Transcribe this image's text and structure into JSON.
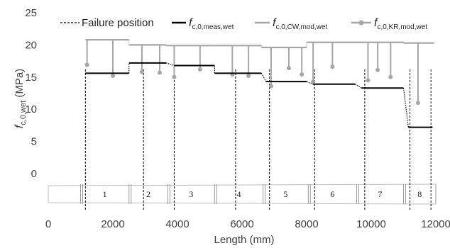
{
  "chart_data": {
    "type": "line",
    "xlabel": "Length (mm)",
    "ylabel": {
      "main": "f",
      "sub": "c,0,wet",
      "unit": " (MPa)"
    },
    "xlim": [
      0,
      12000
    ],
    "ylim": [
      0,
      25
    ],
    "x_ticks": [
      "0",
      "2000",
      "4000",
      "6000",
      "8000",
      "10000",
      "12000"
    ],
    "y_ticks": [
      "0",
      "5",
      "10",
      "15",
      "20",
      "25"
    ],
    "grid": false,
    "legend_position": "top",
    "legend": {
      "failure": "Failure position",
      "meas": {
        "main": "f",
        "sub": "c,0,meas,wet"
      },
      "cw": {
        "main": "f",
        "sub": "c,0,CW,mod,wet"
      },
      "kr": {
        "main": "f",
        "sub": "c,0,KR,mod,wet"
      }
    },
    "colors": {
      "meas": "#000000",
      "cw": "#a6a6a6",
      "kr": "#a6a6a6",
      "failure": "#000000"
    },
    "series": [
      {
        "name": "fc,0,meas,wet",
        "steps": [
          {
            "x0": 1150,
            "x1": 2500,
            "y": 15.6
          },
          {
            "x0": 2500,
            "x1": 3650,
            "y": 17.2
          },
          {
            "x0": 3900,
            "x1": 5150,
            "y": 16.8
          },
          {
            "x0": 5150,
            "x1": 6600,
            "y": 15.6
          },
          {
            "x0": 6750,
            "x1": 8000,
            "y": 14.3
          },
          {
            "x0": 8200,
            "x1": 9500,
            "y": 13.9
          },
          {
            "x0": 9700,
            "x1": 11000,
            "y": 13.3
          },
          {
            "x0": 11150,
            "x1": 11900,
            "y": 7.2
          }
        ]
      },
      {
        "name": "fc,0,CW,mod,wet",
        "steps": [
          {
            "x0": 1150,
            "x1": 2500,
            "y": 20.8
          },
          {
            "x0": 2500,
            "x1": 3650,
            "y": 20.0
          },
          {
            "x0": 3650,
            "x1": 5150,
            "y": 19.9
          },
          {
            "x0": 5150,
            "x1": 6600,
            "y": 19.9
          },
          {
            "x0": 6600,
            "x1": 8000,
            "y": 19.6
          },
          {
            "x0": 8000,
            "x1": 9600,
            "y": 20.4
          },
          {
            "x0": 9600,
            "x1": 11000,
            "y": 20.4
          },
          {
            "x0": 11000,
            "x1": 11950,
            "y": 20.3
          }
        ]
      },
      {
        "name": "fc,0,KR,mod,wet",
        "points": [
          {
            "x": 1200,
            "y": 16.9
          },
          {
            "x": 2000,
            "y": 15.2
          },
          {
            "x": 2900,
            "y": 15.8
          },
          {
            "x": 3450,
            "y": 15.7
          },
          {
            "x": 3900,
            "y": 15.0
          },
          {
            "x": 4700,
            "y": 16.2
          },
          {
            "x": 5700,
            "y": 15.4
          },
          {
            "x": 6200,
            "y": 15.2
          },
          {
            "x": 6900,
            "y": 13.6
          },
          {
            "x": 7450,
            "y": 16.4
          },
          {
            "x": 7850,
            "y": 15.4
          },
          {
            "x": 8200,
            "y": 14.3
          },
          {
            "x": 8800,
            "y": 16.6
          },
          {
            "x": 9900,
            "y": 14.5
          },
          {
            "x": 10200,
            "y": 16.1
          },
          {
            "x": 10600,
            "y": 15.0
          },
          {
            "x": 11450,
            "y": 11.0
          }
        ]
      }
    ],
    "failure_positions": [
      1150,
      2950,
      3900,
      5800,
      6850,
      8250,
      9800,
      11200,
      11850
    ],
    "segments": [
      {
        "label": "1",
        "x0": 1000,
        "x1": 2500
      },
      {
        "label": "2",
        "x0": 2500,
        "x1": 3700
      },
      {
        "label": "3",
        "x0": 3700,
        "x1": 5150
      },
      {
        "label": "4",
        "x0": 5150,
        "x1": 6650
      },
      {
        "label": "5",
        "x0": 6650,
        "x1": 8050
      },
      {
        "label": "6",
        "x0": 8050,
        "x1": 9550
      },
      {
        "label": "7",
        "x0": 9550,
        "x1": 11000
      },
      {
        "label": "8",
        "x0": 11000,
        "x1": 12000
      }
    ]
  }
}
